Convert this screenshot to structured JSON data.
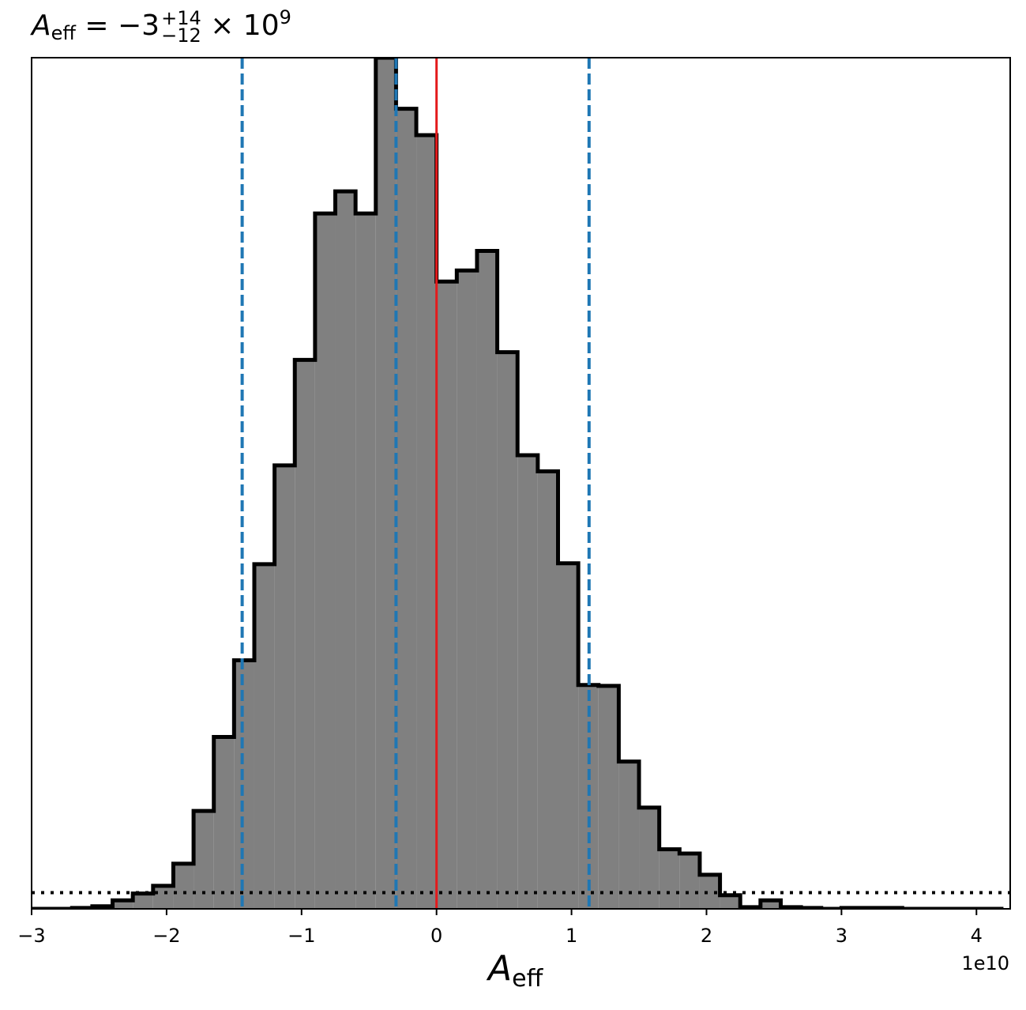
{
  "chart_data": {
    "type": "histogram",
    "title": {
      "symbol": "A",
      "symbol_sub": "eff",
      "value": "−3",
      "upper": "+14",
      "lower": "−12",
      "times": "× 10",
      "exponent": "9"
    },
    "xlabel": {
      "symbol": "A",
      "sub": "eff"
    },
    "x_offset_label": "1e10",
    "xlim": [
      -3.0,
      4.25
    ],
    "x_unit_scale": 10000000000.0,
    "ylim": [
      0,
      1.0
    ],
    "xticks": [
      -3,
      -2,
      -1,
      0,
      1,
      2,
      3,
      4
    ],
    "xtick_labels": [
      "−3",
      "−2",
      "−1",
      "0",
      "1",
      "2",
      "3",
      "4"
    ],
    "bin_edges": [
      -3.0,
      -2.85,
      -2.7,
      -2.55,
      -2.4,
      -2.25,
      -2.1,
      -1.95,
      -1.8,
      -1.65,
      -1.5,
      -1.35,
      -1.2,
      -1.05,
      -0.9,
      -0.75,
      -0.6,
      -0.45,
      -0.3,
      -0.15,
      0.0,
      0.15,
      0.3,
      0.45,
      0.6,
      0.75,
      0.9,
      1.05,
      1.2,
      1.35,
      1.5,
      1.65,
      1.8,
      1.95,
      2.1,
      2.25,
      2.4,
      2.55,
      2.7,
      2.85,
      3.0,
      3.15,
      3.3,
      3.45,
      3.6,
      3.75,
      3.9,
      4.05,
      4.2
    ],
    "counts": [
      0.0,
      0.0,
      0.001,
      0.003,
      0.01,
      0.018,
      0.027,
      0.053,
      0.115,
      0.202,
      0.292,
      0.405,
      0.521,
      0.645,
      0.817,
      0.843,
      0.817,
      1.0,
      0.94,
      0.909,
      0.737,
      0.75,
      0.773,
      0.654,
      0.533,
      0.514,
      0.406,
      0.263,
      0.262,
      0.173,
      0.119,
      0.07,
      0.065,
      0.04,
      0.016,
      0.002,
      0.01,
      0.002,
      0.001,
      0.0,
      0.001,
      0.001,
      0.001,
      0.0,
      0.0,
      0.0,
      0.0,
      0.0
    ],
    "hist_fill": "#808080",
    "hist_edge": "#000000",
    "vlines_dashed": [
      -1.44,
      -0.3,
      1.13
    ],
    "dashed_color": "#1f77b4",
    "vline_solid": 0.0,
    "solid_color": "#e41a1c",
    "hline_dotted": 0.019,
    "dotted_color": "#000000",
    "yticks_visible": false
  }
}
